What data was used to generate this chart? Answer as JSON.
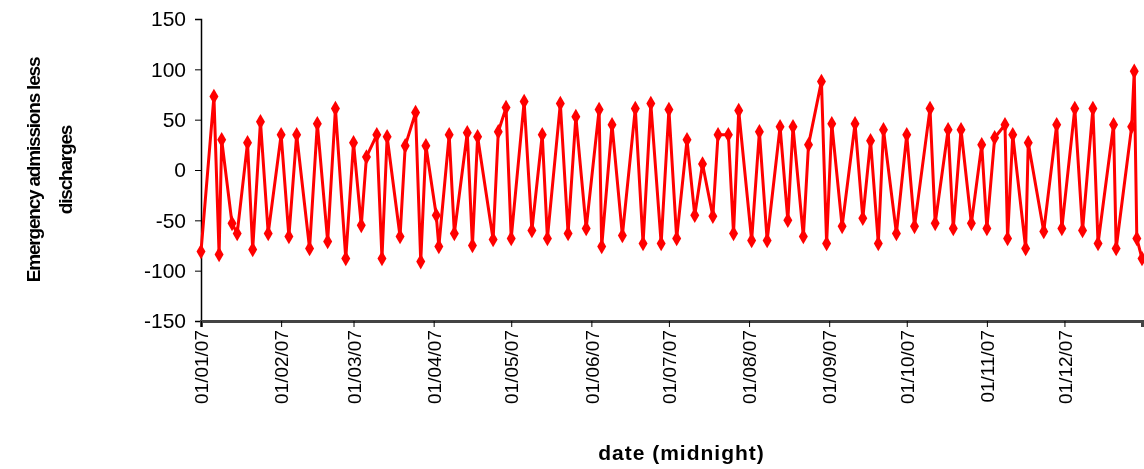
{
  "chart_data": {
    "type": "line",
    "xlabel": "date (midnight)",
    "ylabel": "Emergency admissions less discharges",
    "x": [
      "2007-01-01",
      "2007-01-06",
      "2007-01-08",
      "2007-01-09",
      "2007-01-13",
      "2007-01-15",
      "2007-01-19",
      "2007-01-21",
      "2007-01-24",
      "2007-01-27",
      "2007-02-01",
      "2007-02-04",
      "2007-02-07",
      "2007-02-12",
      "2007-02-15",
      "2007-02-19",
      "2007-02-22",
      "2007-02-26",
      "2007-03-01",
      "2007-03-04",
      "2007-03-06",
      "2007-03-10",
      "2007-03-12",
      "2007-03-14",
      "2007-03-19",
      "2007-03-21",
      "2007-03-25",
      "2007-03-27",
      "2007-03-29",
      "2007-04-02",
      "2007-04-03",
      "2007-04-07",
      "2007-04-09",
      "2007-04-14",
      "2007-04-16",
      "2007-04-18",
      "2007-04-24",
      "2007-04-26",
      "2007-04-29",
      "2007-05-01",
      "2007-05-06",
      "2007-05-09",
      "2007-05-13",
      "2007-05-15",
      "2007-05-20",
      "2007-05-23",
      "2007-05-26",
      "2007-05-30",
      "2007-06-04",
      "2007-06-05",
      "2007-06-09",
      "2007-06-13",
      "2007-06-18",
      "2007-06-21",
      "2007-06-24",
      "2007-06-28",
      "2007-07-01",
      "2007-07-04",
      "2007-07-08",
      "2007-07-11",
      "2007-07-14",
      "2007-07-18",
      "2007-07-20",
      "2007-07-24",
      "2007-07-26",
      "2007-07-28",
      "2007-08-02",
      "2007-08-05",
      "2007-08-08",
      "2007-08-13",
      "2007-08-16",
      "2007-08-18",
      "2007-08-22",
      "2007-08-24",
      "2007-08-29",
      "2007-08-31",
      "2007-09-02",
      "2007-09-06",
      "2007-09-11",
      "2007-09-14",
      "2007-09-17",
      "2007-09-20",
      "2007-09-22",
      "2007-09-27",
      "2007-10-01",
      "2007-10-04",
      "2007-10-10",
      "2007-10-12",
      "2007-10-17",
      "2007-10-19",
      "2007-10-22",
      "2007-10-26",
      "2007-10-30",
      "2007-11-01",
      "2007-11-04",
      "2007-11-08",
      "2007-11-09",
      "2007-11-11",
      "2007-11-16",
      "2007-11-17",
      "2007-11-23",
      "2007-11-28",
      "2007-11-30",
      "2007-12-05",
      "2007-12-08",
      "2007-12-12",
      "2007-12-14",
      "2007-12-20",
      "2007-12-21",
      "2007-12-27",
      "2007-12-28",
      "2007-12-29",
      "2007-12-31"
    ],
    "series": [
      {
        "color": "#ff0000",
        "values": [
          -81,
          73,
          -84,
          30,
          -53,
          -63,
          27,
          -79,
          48,
          -63,
          35,
          -66,
          35,
          -78,
          46,
          -71,
          61,
          -88,
          27,
          -55,
          13,
          35,
          -88,
          33,
          -66,
          24,
          57,
          -91,
          24,
          -45,
          -76,
          35,
          -63,
          37,
          -75,
          33,
          -69,
          38,
          62,
          -68,
          68,
          -60,
          35,
          -68,
          66,
          -63,
          53,
          -58,
          60,
          -76,
          45,
          -65,
          61,
          -73,
          66,
          -73,
          60,
          -68,
          30,
          -45,
          6,
          -46,
          35,
          35,
          -63,
          59,
          -70,
          38,
          -70,
          43,
          -50,
          43,
          -66,
          25,
          88,
          -73,
          46,
          -56,
          46,
          -48,
          29,
          -73,
          40,
          -63,
          35,
          -56,
          61,
          -53,
          40,
          -58,
          40,
          -53,
          25,
          -58,
          32,
          45,
          -68,
          35,
          -78,
          27,
          -61,
          45,
          -58,
          61,
          -60,
          61,
          -73,
          45,
          -78,
          43,
          98,
          -68,
          -88
        ]
      }
    ],
    "xlim": [
      "2007-01-01",
      "2007-12-31"
    ],
    "xticks": [
      {
        "value": "2007-01-01",
        "label": "01/01/07"
      },
      {
        "value": "2007-02-01",
        "label": "01/02/07"
      },
      {
        "value": "2007-03-01",
        "label": "01/03/07"
      },
      {
        "value": "2007-04-01",
        "label": "01/04/07"
      },
      {
        "value": "2007-05-01",
        "label": "01/05/07"
      },
      {
        "value": "2007-06-01",
        "label": "01/06/07"
      },
      {
        "value": "2007-07-01",
        "label": "01/07/07"
      },
      {
        "value": "2007-08-01",
        "label": "01/08/07"
      },
      {
        "value": "2007-09-01",
        "label": "01/09/07"
      },
      {
        "value": "2007-10-01",
        "label": "01/10/07"
      },
      {
        "value": "2007-11-01",
        "label": "01/11/07"
      },
      {
        "value": "2007-12-01",
        "label": "01/12/07"
      }
    ],
    "ylim": [
      -150,
      150
    ],
    "yticks": [
      -150,
      -100,
      -50,
      0,
      50,
      100,
      150
    ],
    "grid": false,
    "marker": "diamond",
    "line_style": "solid"
  }
}
